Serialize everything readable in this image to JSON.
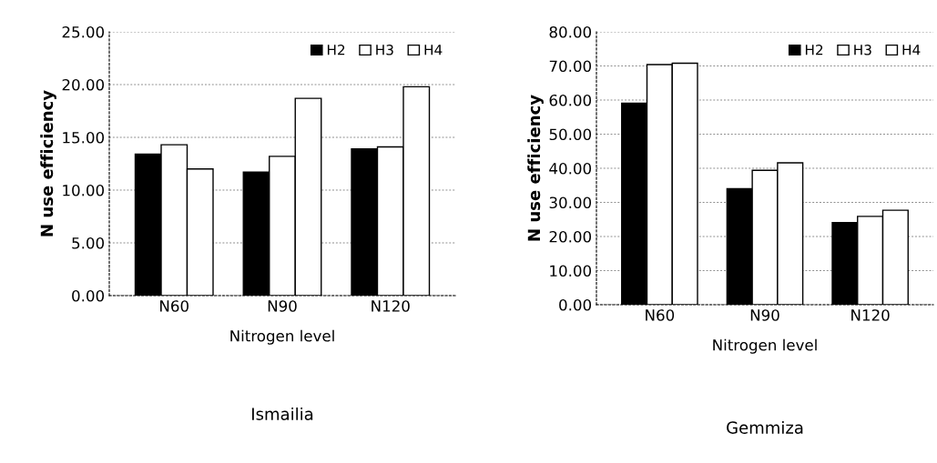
{
  "chart_data": [
    {
      "type": "bar",
      "title": "Ismailia",
      "xlabel": "Nitrogen level",
      "ylabel": "N use efficiency",
      "categories": [
        "N60",
        "N90",
        "N120"
      ],
      "series": [
        {
          "name": "H2",
          "color": "#000000",
          "values": [
            13.4,
            11.7,
            13.9
          ]
        },
        {
          "name": "H3",
          "color": "#ffffff",
          "values": [
            14.3,
            13.2,
            14.1
          ]
        },
        {
          "name": "H4",
          "color": "#ffffff",
          "values": [
            12.0,
            18.7,
            19.8
          ]
        }
      ],
      "ylim": [
        0,
        25
      ],
      "yticks": [
        {
          "value": 0,
          "label": "0.00"
        },
        {
          "value": 5,
          "label": "5.00"
        },
        {
          "value": 10,
          "label": "10.00"
        },
        {
          "value": 15,
          "label": "15.00"
        },
        {
          "value": 20,
          "label": "20.00"
        },
        {
          "value": 25,
          "label": "25.00"
        }
      ],
      "grid": "y",
      "legend": "top right"
    },
    {
      "type": "bar",
      "title": "Gemmiza",
      "xlabel": "Nitrogen level",
      "ylabel": "N use efficiency",
      "categories": [
        "N60",
        "N90",
        "N120"
      ],
      "series": [
        {
          "name": "H2",
          "color": "#000000",
          "values": [
            59.1,
            34.0,
            24.1
          ]
        },
        {
          "name": "H3",
          "color": "#ffffff",
          "values": [
            70.4,
            39.4,
            25.9
          ]
        },
        {
          "name": "H4",
          "color": "#ffffff",
          "values": [
            70.8,
            41.6,
            27.7
          ]
        }
      ],
      "ylim": [
        0,
        80
      ],
      "yticks": [
        {
          "value": 0,
          "label": "0.00"
        },
        {
          "value": 10,
          "label": "10.00"
        },
        {
          "value": 20,
          "label": "20.00"
        },
        {
          "value": 30,
          "label": "30.00"
        },
        {
          "value": 40,
          "label": "40.00"
        },
        {
          "value": 50,
          "label": "50.00"
        },
        {
          "value": 60,
          "label": "60.00"
        },
        {
          "value": 70,
          "label": "70.00"
        },
        {
          "value": 80,
          "label": "80.00"
        }
      ],
      "grid": "y",
      "legend": "top right"
    }
  ]
}
